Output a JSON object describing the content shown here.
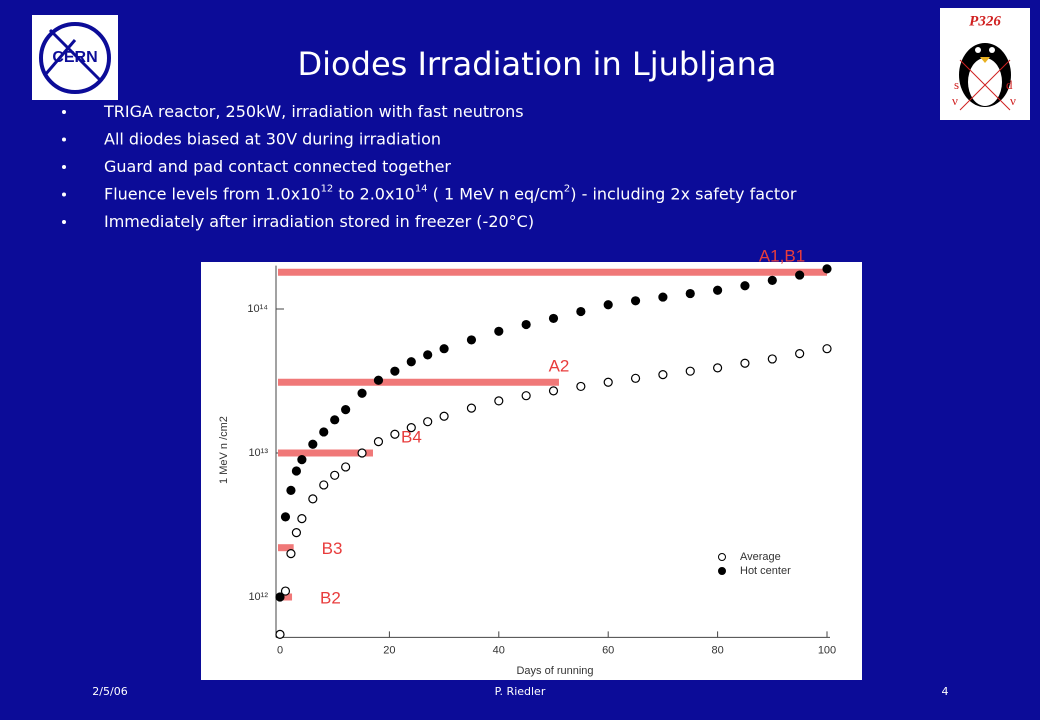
{
  "header": {
    "title": "Diodes Irradiation in Ljubljana",
    "logo_left": "CERN",
    "logo_right": "P326",
    "logo_right_letters": [
      "s",
      "d",
      "ν",
      "ν"
    ]
  },
  "bullets": [
    [
      {
        "text": "TRIGA reactor, 250kW, irradiation with fast neutrons"
      }
    ],
    [
      {
        "text": "All diodes biased at 30V during irradiation"
      }
    ],
    [
      {
        "text": "Guard and pad contact connected together"
      }
    ],
    [
      {
        "text": "Fluence levels from 1.0x10"
      },
      {
        "sup": "12"
      },
      {
        "text": "  to 2.0x10"
      },
      {
        "sup": "14"
      },
      {
        "text": "  ( 1 MeV n eq/cm"
      },
      {
        "sup": "2"
      },
      {
        "text": ") - including 2x safety factor"
      }
    ],
    [
      {
        "text": "Immediately after irradiation stored in freezer (-20°C)"
      }
    ]
  ],
  "chart_data": {
    "type": "scatter",
    "log_y": true,
    "x_label": "Days of running",
    "y_label": "1 MeV n /cm2",
    "xlim": [
      0,
      100
    ],
    "xticks": [
      0,
      20,
      40,
      60,
      80,
      100
    ],
    "ylim": [
      550000000000,
      200000000000000
    ],
    "yticks": [
      {
        "value": 1000000000000.0,
        "label": "10¹²"
      },
      {
        "value": 10000000000000.0,
        "label": "10¹³"
      },
      {
        "value": 100000000000000.0,
        "label": "10¹⁴"
      }
    ],
    "x": [
      0,
      1,
      2,
      3,
      4,
      6,
      8,
      10,
      12,
      15,
      18,
      21,
      24,
      27,
      30,
      35,
      40,
      45,
      50,
      55,
      60,
      65,
      70,
      75,
      80,
      85,
      90,
      95,
      100
    ],
    "series": [
      {
        "name": "Average",
        "color": "#000000",
        "filled": false,
        "values": [
          550000000000.0,
          1100000000000.0,
          2000000000000.0,
          2800000000000.0,
          3500000000000.0,
          4800000000000.0,
          6000000000000.0,
          7000000000000.0,
          8000000000000.0,
          10000000000000.0,
          12000000000000.0,
          13500000000000.0,
          15000000000000.0,
          16500000000000.0,
          18000000000000.0,
          20500000000000.0,
          23000000000000.0,
          25000000000000.0,
          27000000000000.0,
          29000000000000.0,
          31000000000000.0,
          33000000000000.0,
          35000000000000.0,
          37000000000000.0,
          39000000000000.0,
          42000000000000.0,
          45000000000000.0,
          49000000000000.0,
          53000000000000.0
        ]
      },
      {
        "name": "Hot center",
        "color": "#000000",
        "filled": true,
        "values": [
          1000000000000.0,
          3600000000000.0,
          5500000000000.0,
          7500000000000.0,
          9000000000000.0,
          11500000000000.0,
          14000000000000.0,
          17000000000000.0,
          20000000000000.0,
          26000000000000.0,
          32000000000000.0,
          37000000000000.0,
          43000000000000.0,
          48000000000000.0,
          53000000000000.0,
          61000000000000.0,
          70000000000000.0,
          78000000000000.0,
          86000000000000.0,
          96000000000000.0,
          107000000000000.0,
          114000000000000.0,
          121000000000000.0,
          128000000000000.0,
          135000000000000.0,
          145000000000000.0,
          158000000000000.0,
          172000000000000.0,
          190000000000000.0
        ]
      }
    ],
    "annotations": [
      {
        "label": "A1,B1",
        "value": 180000000000000.0,
        "x_end": 100
      },
      {
        "label": "A2",
        "value": 31000000000000.0,
        "x_end": 51
      },
      {
        "label": "B4",
        "value": 10000000000000.0,
        "x_end": 17
      },
      {
        "label": "B3",
        "value": 2200000000000.0,
        "x_end": 2.5
      },
      {
        "label": "B2",
        "value": 1000000000000.0,
        "x_end": 2.2
      }
    ],
    "annotation_color": "#f07878",
    "annotation_text_color": "#e83c3c"
  },
  "footer": {
    "date": "2/5/06",
    "author": "P. Riedler",
    "page": "4"
  }
}
